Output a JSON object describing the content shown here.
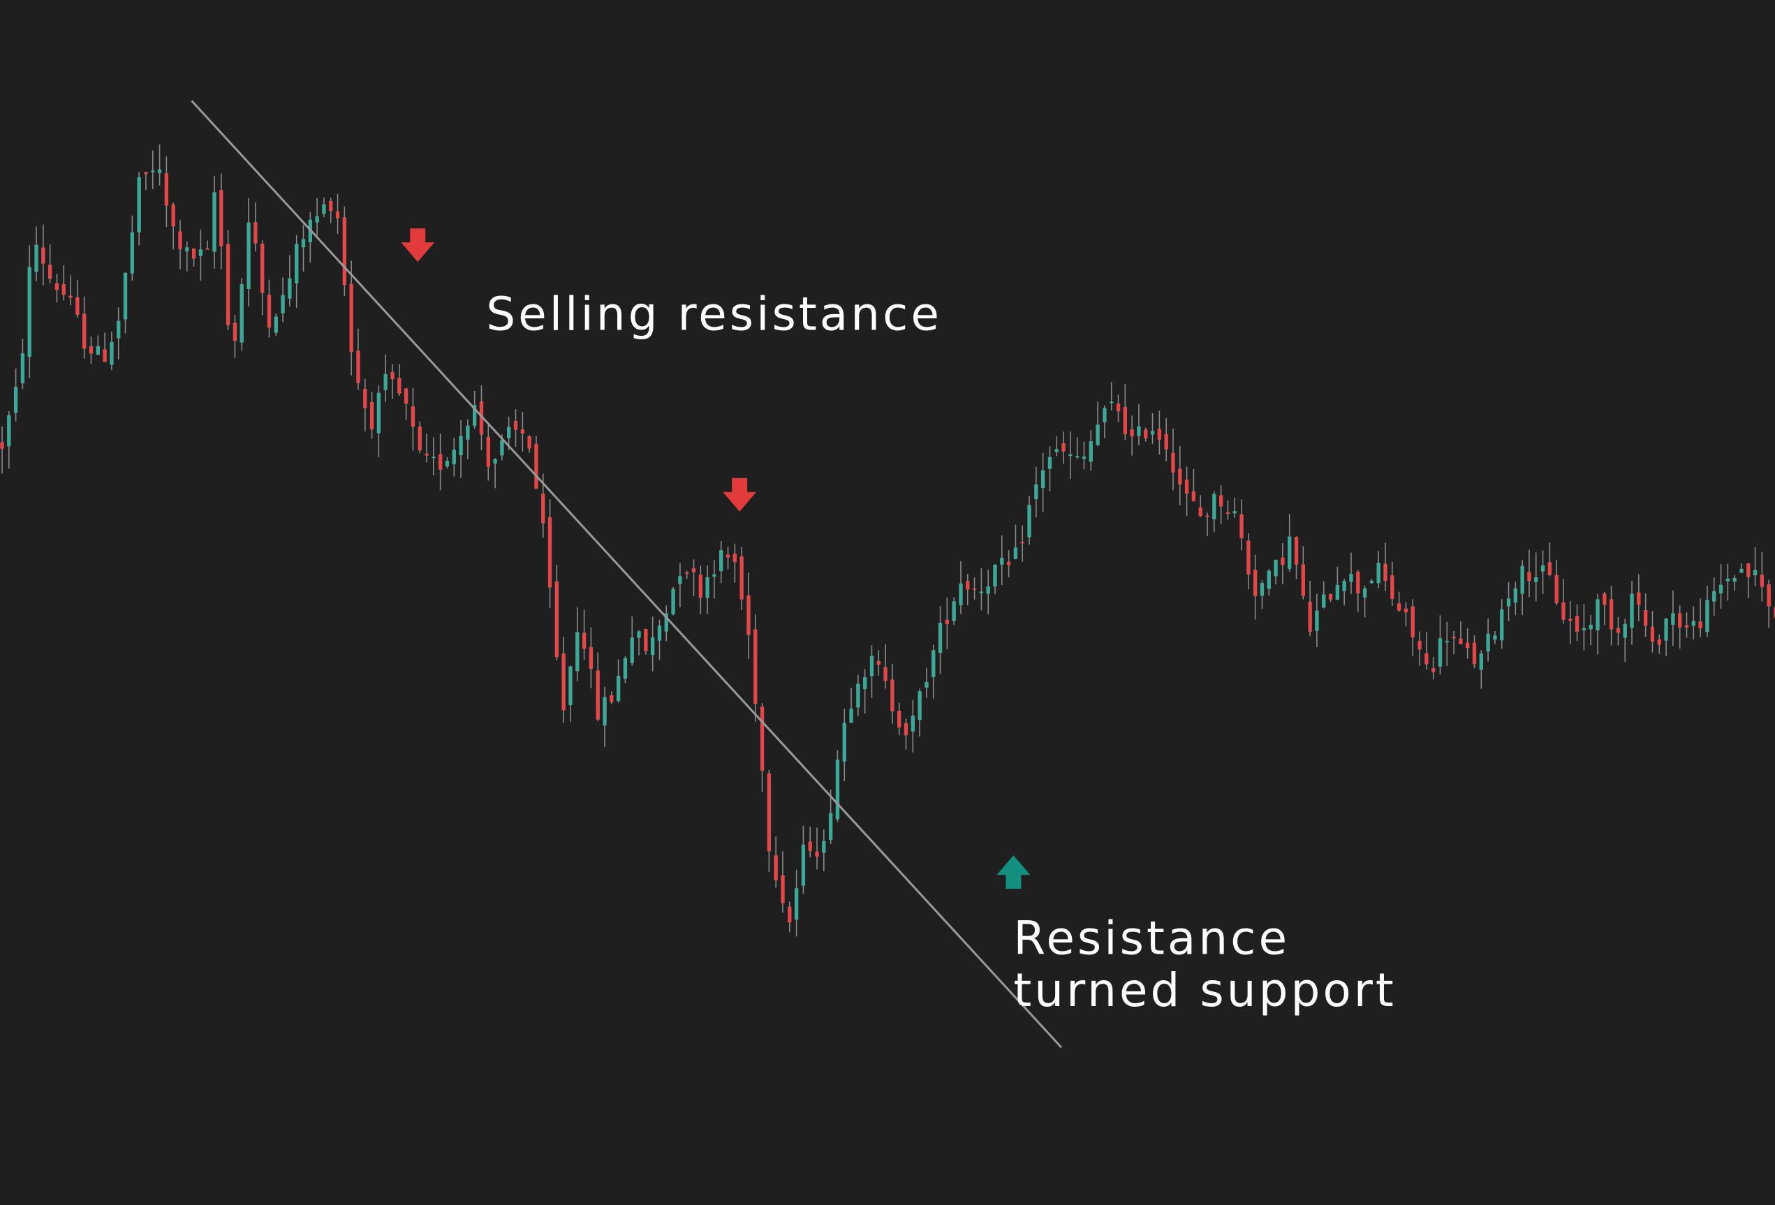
{
  "chart_data": {
    "type": "candlestick",
    "title": "",
    "xlabel": "",
    "ylabel": "",
    "axes_visible": false,
    "grid": false,
    "ylim": [
      0,
      100
    ],
    "x": {
      "count": 260
    },
    "series": [
      {
        "name": "",
        "type": "close_path",
        "y": [
          [
            0,
            62
          ],
          [
            5,
            68
          ],
          [
            9,
            82
          ],
          [
            14,
            78
          ],
          [
            19,
            76
          ],
          [
            24,
            72
          ],
          [
            29,
            70
          ],
          [
            34,
            74
          ],
          [
            40,
            87
          ],
          [
            45,
            89
          ],
          [
            49,
            83
          ],
          [
            54,
            80
          ],
          [
            60,
            80
          ],
          [
            62,
            87
          ],
          [
            67,
            70
          ],
          [
            72,
            84
          ],
          [
            77,
            74
          ],
          [
            82,
            76
          ],
          [
            87,
            82
          ],
          [
            92,
            84
          ],
          [
            97,
            86
          ],
          [
            102,
            70
          ],
          [
            107,
            64
          ],
          [
            112,
            68
          ],
          [
            117,
            66
          ],
          [
            122,
            60
          ],
          [
            127,
            60
          ],
          [
            132,
            62
          ],
          [
            137,
            66
          ],
          [
            142,
            60
          ],
          [
            148,
            63
          ],
          [
            153,
            63
          ],
          [
            158,
            52
          ],
          [
            163,
            36
          ],
          [
            168,
            46
          ],
          [
            173,
            36
          ],
          [
            178,
            38
          ],
          [
            183,
            44
          ],
          [
            188,
            42
          ],
          [
            193,
            46
          ],
          [
            198,
            51
          ],
          [
            203,
            48
          ],
          [
            208,
            51
          ],
          [
            213,
            51
          ],
          [
            218,
            42
          ],
          [
            223,
            24
          ],
          [
            229,
            16
          ],
          [
            234,
            24
          ],
          [
            239,
            23
          ],
          [
            244,
            34
          ],
          [
            249,
            40
          ],
          [
            254,
            41
          ],
          [
            259,
            37
          ],
          [
            264,
            34
          ],
          [
            269,
            40
          ],
          [
            274,
            45
          ],
          [
            279,
            49
          ],
          [
            284,
            48
          ],
          [
            289,
            50
          ],
          [
            294,
            50
          ],
          [
            299,
            56
          ],
          [
            304,
            61
          ],
          [
            309,
            61
          ],
          [
            314,
            60
          ],
          [
            319,
            64
          ],
          [
            324,
            66
          ],
          [
            329,
            62
          ],
          [
            334,
            64
          ],
          [
            339,
            62
          ],
          [
            344,
            57
          ],
          [
            349,
            55
          ],
          [
            354,
            57
          ],
          [
            359,
            55
          ],
          [
            364,
            48
          ],
          [
            369,
            49
          ],
          [
            375,
            53
          ],
          [
            380,
            44
          ],
          [
            385,
            47
          ],
          [
            390,
            50
          ],
          [
            395,
            48
          ],
          [
            400,
            50
          ],
          [
            405,
            47
          ],
          [
            410,
            44
          ],
          [
            415,
            40
          ],
          [
            420,
            44
          ],
          [
            425,
            42
          ],
          [
            430,
            41
          ],
          [
            435,
            45
          ],
          [
            440,
            49
          ],
          [
            445,
            50
          ],
          [
            450,
            49
          ],
          [
            455,
            45
          ],
          [
            460,
            44
          ],
          [
            465,
            47
          ],
          [
            470,
            44
          ],
          [
            475,
            48
          ],
          [
            480,
            42
          ],
          [
            485,
            46
          ],
          [
            491,
            44
          ],
          [
            496,
            46
          ],
          [
            501,
            49
          ],
          [
            506,
            50
          ],
          [
            511,
            49
          ],
          [
            516,
            45
          ]
        ]
      }
    ],
    "trendline": {
      "name": "",
      "from": [
        28,
        95
      ],
      "to": [
        155,
        4
      ]
    },
    "markers": [
      {
        "kind": "arrow-down",
        "color_key": "bear",
        "x": 61,
        "y": 81
      },
      {
        "kind": "arrow-down",
        "color_key": "bear",
        "x": 108,
        "y": 57
      },
      {
        "kind": "arrow-up",
        "color_key": "bull",
        "x": 148,
        "y": 21
      }
    ],
    "annotations": [
      {
        "text": "Selling resistance",
        "x": 71,
        "y": 73
      },
      {
        "text": "Resistance",
        "x": 148,
        "y": 13
      },
      {
        "text": "turned support",
        "x": 148,
        "y": 8
      }
    ],
    "colors": {
      "background": "#1f1f1f",
      "bull": "#3fa796",
      "bear": "#e0484a",
      "bull_marker": "#138f7f",
      "bear_marker": "#e23b3b",
      "wick": "#8a8a8a",
      "trendline": "#9a9a9a",
      "text": "#ffffff"
    }
  }
}
